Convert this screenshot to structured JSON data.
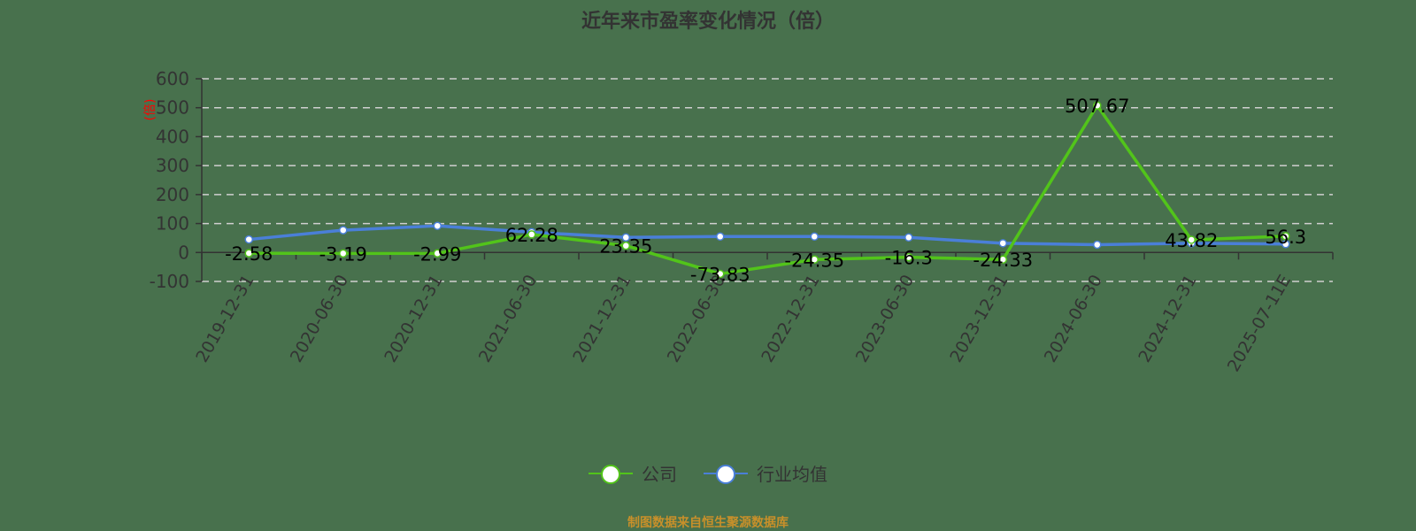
{
  "title": "近年来市盈率变化情况（倍）",
  "footer": "制图数据来自恒生聚源数据库",
  "legend": [
    {
      "label": "公司",
      "color": "#52c41a"
    },
    {
      "label": "行业均值",
      "color": "#4a7fd8"
    }
  ],
  "y_unit_label": "(倍)",
  "chart_data": {
    "type": "line",
    "title": "近年来市盈率变化情况（倍）",
    "xlabel": "",
    "ylabel": "(倍)",
    "ylim": [
      -100,
      600
    ],
    "yticks": [
      600,
      500,
      400,
      300,
      200,
      100,
      0,
      -100
    ],
    "grid": true,
    "legend_position": "bottom",
    "categories": [
      "2019-12-31",
      "2020-06-30",
      "2020-12-31",
      "2021-06-30",
      "2021-12-31",
      "2022-06-30",
      "2022-12-31",
      "2023-06-30",
      "2023-12-31",
      "2024-06-30",
      "2024-12-31",
      "2025-07-11E"
    ],
    "series": [
      {
        "name": "公司",
        "color": "#52c41a",
        "values": [
          -2.58,
          -3.19,
          -2.99,
          62.28,
          23.35,
          -73.83,
          -24.35,
          -16.3,
          -24.33,
          507.67,
          43.82,
          56.3
        ],
        "labels": [
          "-2.58",
          "-3.19",
          "-2.99",
          "62.28",
          "23.35",
          "-73.83",
          "-24.35",
          "-16.3",
          "-24.33",
          "507.67",
          "43.82",
          "56.3"
        ]
      },
      {
        "name": "行业均值",
        "color": "#4a7fd8",
        "values": [
          45,
          77,
          92,
          70,
          52,
          55,
          55,
          52,
          32,
          27,
          32,
          29
        ]
      }
    ]
  }
}
